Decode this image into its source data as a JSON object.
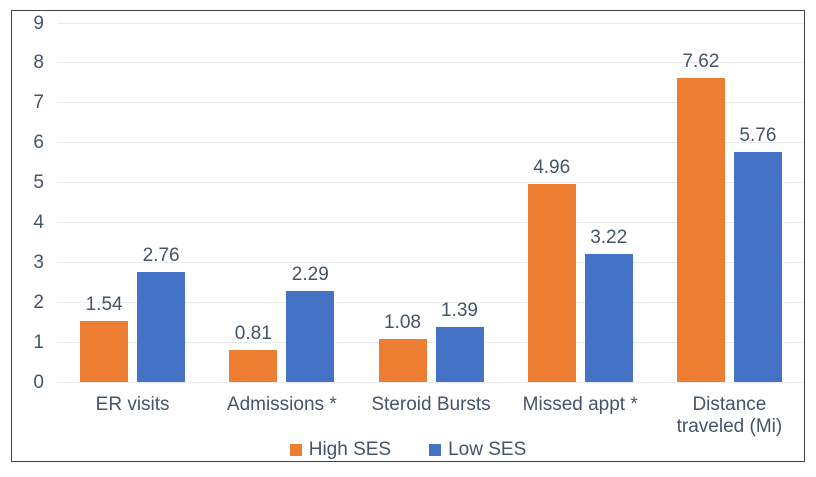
{
  "chart_data": {
    "type": "bar",
    "title": "",
    "xlabel": "",
    "ylabel": "",
    "categories": [
      "ER visits",
      "Admissions *",
      "Steroid Bursts",
      "Missed appt *",
      "Distance traveled (Mi)"
    ],
    "series": [
      {
        "name": "High SES",
        "color": "#ED7D31",
        "values": [
          1.54,
          0.81,
          1.08,
          4.96,
          7.62
        ]
      },
      {
        "name": "Low SES",
        "color": "#4472C4",
        "values": [
          2.76,
          2.29,
          1.39,
          3.22,
          5.76
        ]
      }
    ],
    "data_labels": [
      [
        "1.54",
        "0.81",
        "1.08",
        "4.96",
        "7.62"
      ],
      [
        "2.76",
        "2.29",
        "1.39",
        "3.22",
        "5.76"
      ]
    ],
    "ylim": [
      0,
      9
    ],
    "yticks": [
      "0",
      "1",
      "2",
      "3",
      "4",
      "5",
      "6",
      "7",
      "8",
      "9"
    ],
    "grid": true,
    "legend_position": "bottom",
    "colors": {
      "text": "#44546A",
      "gridline": "#E8EAEC",
      "border": "#404040",
      "high_ses": "#ED7D31",
      "low_ses": "#4472C4"
    }
  }
}
